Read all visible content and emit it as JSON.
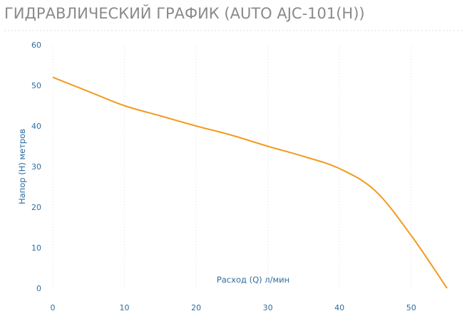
{
  "chart_data": {
    "type": "line",
    "title": "ГИДРАВЛИЧЕСКИЙ ГРАФИК (AUTO AJC-101(H))",
    "x_label": "Расход (Q) л/мин",
    "y_label": "Напор (H) метров",
    "x": [
      0,
      5,
      10,
      15,
      20,
      25,
      30,
      35,
      40,
      45,
      50,
      55
    ],
    "series": [
      {
        "name": "AUTO AJC-101(H)",
        "color": "#f39a1e",
        "values": [
          52,
          48.5,
          45,
          42.5,
          40,
          37.7,
          35,
          32.5,
          29.5,
          24,
          13,
          0
        ]
      }
    ],
    "xlim": [
      0,
      55
    ],
    "ylim": [
      0,
      60
    ],
    "xticks": [
      0,
      10,
      20,
      30,
      40,
      50
    ],
    "yticks": [
      0,
      10,
      20,
      30,
      40,
      50,
      60
    ],
    "grid": true
  }
}
